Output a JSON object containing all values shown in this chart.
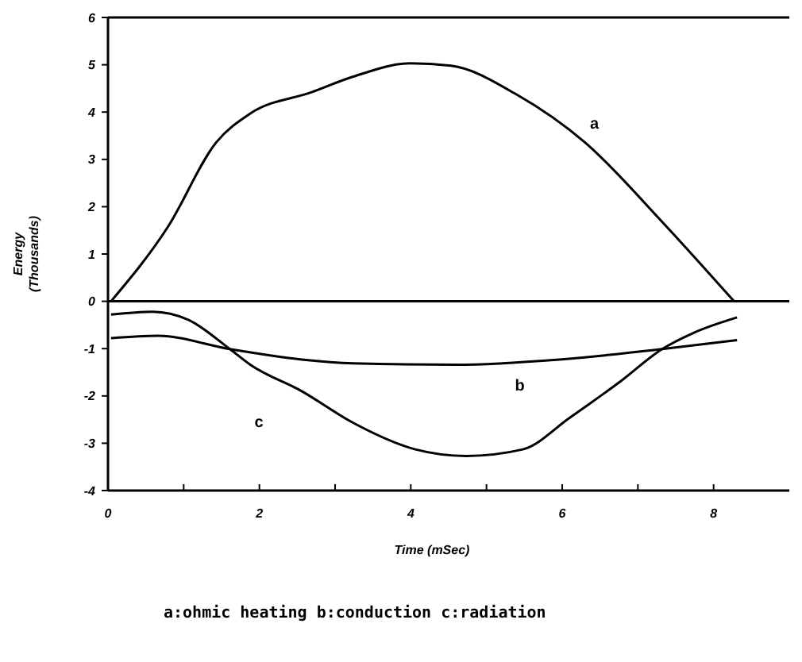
{
  "chart_data": {
    "type": "line",
    "xlabel": "Time (mSec)",
    "ylabel": "Energy\n(Thousands)",
    "xlim": [
      0,
      9
    ],
    "ylim": [
      -4,
      6
    ],
    "xticks": [
      0,
      {
        "value": 1,
        "label": null
      },
      2,
      {
        "value": 3,
        "label": null
      },
      4,
      {
        "value": 5,
        "label": null
      },
      6,
      {
        "value": 7,
        "label": null
      },
      8
    ],
    "yticks": [
      -4,
      -3,
      -2,
      -1,
      0,
      1,
      2,
      3,
      4,
      5,
      6
    ],
    "grid": false,
    "marker": "none",
    "line_style": "solid",
    "ref_lines": [
      {
        "axis": "y",
        "value": 0,
        "color": "#000000"
      }
    ],
    "series": [
      {
        "name": "a",
        "color": "#000000",
        "x": [
          0.04,
          0.79,
          1.43,
          1.88,
          2.69,
          3.24,
          3.99,
          4.53,
          5.41,
          6.3,
          7.32,
          8.27
        ],
        "values": [
          0,
          1.57,
          3.36,
          3.97,
          4.42,
          4.75,
          5.03,
          4.98,
          4.36,
          3.36,
          1.68,
          0
        ]
      },
      {
        "name": "b",
        "color": "#000000",
        "x": [
          0.04,
          0.66,
          1.61,
          2.56,
          3.24,
          4.6,
          5.96,
          7.32,
          8.31
        ],
        "values": [
          -0.78,
          -0.73,
          -1.01,
          -1.23,
          -1.31,
          -1.34,
          -1.23,
          -1.01,
          -0.82
        ]
      },
      {
        "name": "c",
        "color": "#000000",
        "x": [
          0.04,
          0.59,
          1.06,
          1.61,
          1.88,
          2.56,
          3.24,
          4.06,
          4.73,
          5.48,
          6.1,
          6.78,
          7.32,
          7.73,
          8.31
        ],
        "values": [
          -0.28,
          -0.22,
          -0.39,
          -1.01,
          -1.34,
          -1.9,
          -2.57,
          -3.13,
          -3.27,
          -3.13,
          -2.46,
          -1.68,
          -1.01,
          -0.67,
          -0.34
        ]
      }
    ],
    "annotations": [
      "a:ohmic heating b:conduction c:radiation"
    ]
  }
}
